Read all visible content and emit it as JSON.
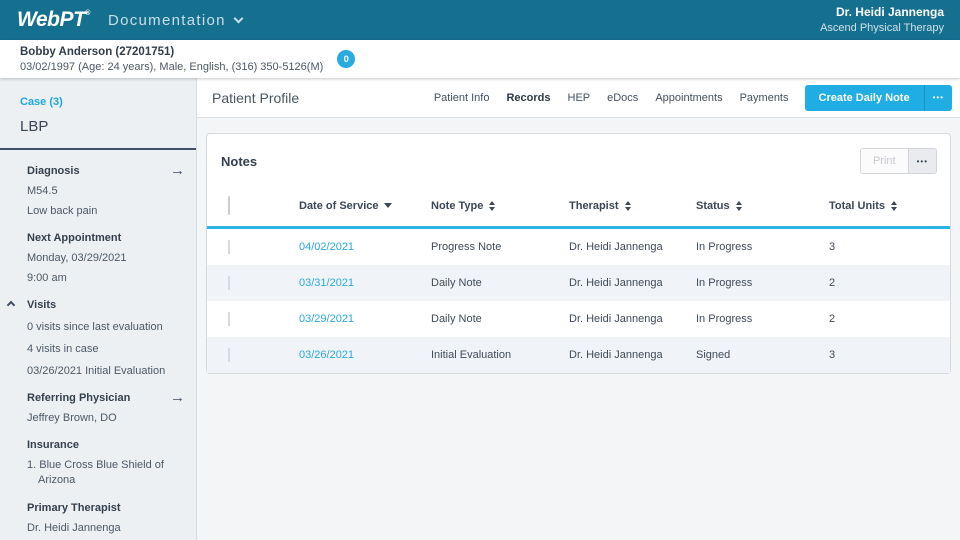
{
  "colors": {
    "brand_teal": "#156f8f",
    "accent_cyan": "#29abe2",
    "button_cyan": "#1fade4",
    "table_underline": "#2bb2e7"
  },
  "topbar": {
    "logo": "WebPT",
    "logo_mark": "®",
    "app_menu": "Documentation",
    "user_name": "Dr. Heidi Jannenga",
    "clinic_name": "Ascend Physical Therapy"
  },
  "patient_bar": {
    "name": "Bobby Anderson (27201751)",
    "details": "03/02/1997 (Age: 24 years), Male, English, (316) 350-5126(M)",
    "badge_count": "0"
  },
  "sidebar": {
    "case_label": "Case (3)",
    "case_name": "LBP",
    "sections": [
      {
        "label": "Diagnosis",
        "lines": [
          "M54.5",
          "Low back pain"
        ]
      },
      {
        "label": "Next Appointment",
        "lines": [
          "Monday, 03/29/2021",
          "9:00 am"
        ]
      },
      {
        "label": "Visits",
        "lines": [
          "0 visits since last evaluation",
          "4 visits in case",
          "03/26/2021 Initial Evaluation"
        ]
      },
      {
        "label": "Referring Physician",
        "lines": [
          "Jeffrey Brown, DO"
        ]
      },
      {
        "label": "Insurance",
        "lines": [
          "1. Blue Cross Blue Shield of Arizona"
        ]
      },
      {
        "label": "Primary Therapist",
        "lines": [
          "Dr. Heidi Jannenga"
        ]
      }
    ]
  },
  "main": {
    "title": "Patient Profile",
    "tabs": [
      {
        "label": "Patient Info",
        "active": false
      },
      {
        "label": "Records",
        "active": true
      },
      {
        "label": "HEP",
        "active": false
      },
      {
        "label": "eDocs",
        "active": false
      },
      {
        "label": "Appointments",
        "active": false
      },
      {
        "label": "Payments",
        "active": false
      }
    ],
    "create_note_button": "Create Daily Note",
    "more_label": "•••"
  },
  "notes": {
    "title": "Notes",
    "print_label": "Print",
    "more_label": "•••",
    "table": {
      "columns": [
        "Date of Service",
        "Note Type",
        "Therapist",
        "Status",
        "Total Units"
      ],
      "sorted_column": "Date of Service",
      "sort_direction": "desc",
      "rows": [
        {
          "date": "04/02/2021",
          "note_type": "Progress Note",
          "therapist": "Dr. Heidi Jannenga",
          "status": "In Progress",
          "total_units": "3"
        },
        {
          "date": "03/31/2021",
          "note_type": "Daily Note",
          "therapist": "Dr. Heidi Jannenga",
          "status": "In Progress",
          "total_units": "2"
        },
        {
          "date": "03/29/2021",
          "note_type": "Daily Note",
          "therapist": "Dr. Heidi Jannenga",
          "status": "In Progress",
          "total_units": "2"
        },
        {
          "date": "03/26/2021",
          "note_type": "Initial Evaluation",
          "therapist": "Dr. Heidi Jannenga",
          "status": "Signed",
          "total_units": "3"
        }
      ]
    }
  }
}
